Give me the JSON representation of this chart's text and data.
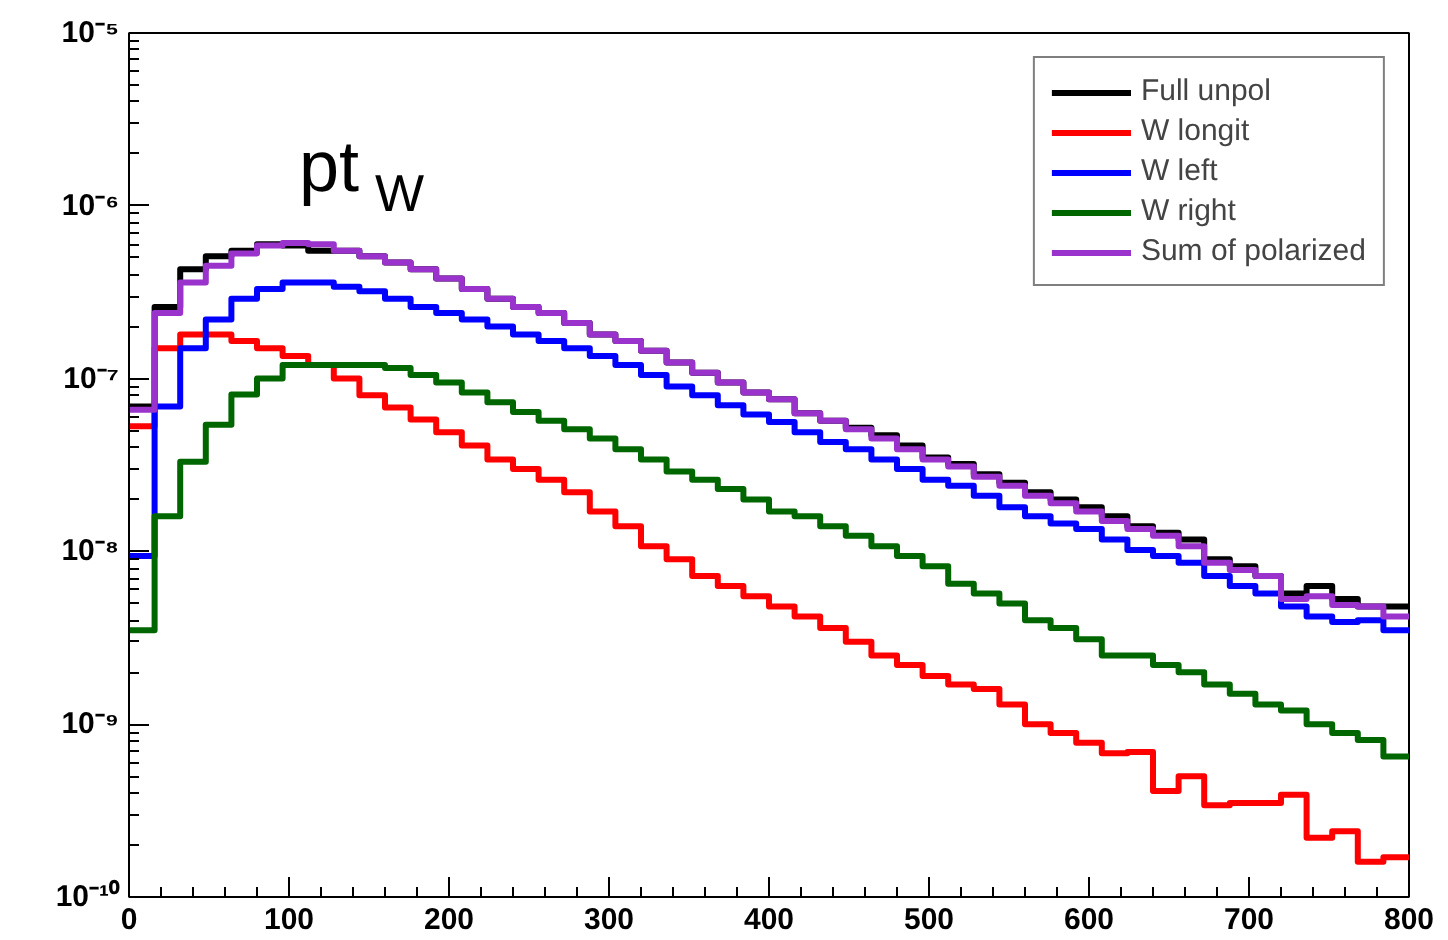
{
  "chart_data": {
    "type": "histogram",
    "bins": [
      0,
      16,
      32,
      48,
      64,
      80,
      96,
      112,
      128,
      144,
      160,
      176,
      192,
      208,
      224,
      240,
      256,
      272,
      288,
      304,
      320,
      336,
      352,
      368,
      384,
      400,
      416,
      432,
      448,
      464,
      480,
      496,
      512,
      528,
      544,
      560,
      576,
      592,
      608,
      624,
      640,
      656,
      672,
      688,
      704,
      720,
      736,
      752,
      768,
      784,
      800
    ],
    "series": [
      {
        "name": "Full unpol",
        "color": "#000000",
        "values": [
          6.9e-08,
          2.6e-07,
          4.3e-07,
          5.1e-07,
          5.5e-07,
          6e-07,
          5.9e-07,
          5.5e-07,
          5.5e-07,
          5.1e-07,
          4.7e-07,
          4.3e-07,
          3.8e-07,
          3.3e-07,
          2.9e-07,
          2.6e-07,
          2.4e-07,
          2.1e-07,
          1.8e-07,
          1.65e-07,
          1.45e-07,
          1.24e-07,
          1.08e-07,
          9.5e-08,
          8.3e-08,
          7.6e-08,
          6.3e-08,
          5.7e-08,
          5.2e-08,
          4.7e-08,
          4.1e-08,
          3.5e-08,
          3.2e-08,
          2.8e-08,
          2.5e-08,
          2.2e-08,
          2e-08,
          1.8e-08,
          1.6e-08,
          1.4e-08,
          1.28e-08,
          1.17e-08,
          9e-09,
          8.2e-09,
          7.2e-09,
          5.7e-09,
          6.3e-09,
          5.3e-09,
          4.8e-09,
          4.8e-09
        ]
      },
      {
        "name": "W longit",
        "color": "#ff0000",
        "values": [
          5.3e-08,
          1.5e-07,
          1.8e-07,
          1.8e-07,
          1.65e-07,
          1.5e-07,
          1.35e-07,
          1.2e-07,
          1e-07,
          8e-08,
          6.8e-08,
          5.8e-08,
          4.9e-08,
          4.1e-08,
          3.4e-08,
          3e-08,
          2.6e-08,
          2.2e-08,
          1.7e-08,
          1.4e-08,
          1.07e-08,
          9e-09,
          7.2e-09,
          6.3e-09,
          5.5e-09,
          4.8e-09,
          4.2e-09,
          3.6e-09,
          3e-09,
          2.5e-09,
          2.2e-09,
          1.9e-09,
          1.7e-09,
          1.6e-09,
          1.3e-09,
          1e-09,
          8.9e-10,
          7.8e-10,
          6.8e-10,
          6.9e-10,
          4.1e-10,
          5e-10,
          3.4e-10,
          3.5e-10,
          3.5e-10,
          3.9e-10,
          2.2e-10,
          2.4e-10,
          1.6e-10,
          1.7e-10
        ]
      },
      {
        "name": "W left",
        "color": "#0000ff",
        "values": [
          9.4e-09,
          6.9e-08,
          1.5e-07,
          2.2e-07,
          2.9e-07,
          3.3e-07,
          3.6e-07,
          3.6e-07,
          3.4e-07,
          3.2e-07,
          2.9e-07,
          2.6e-07,
          2.4e-07,
          2.2e-07,
          2e-07,
          1.8e-07,
          1.65e-07,
          1.5e-07,
          1.35e-07,
          1.2e-07,
          1.05e-07,
          9e-08,
          8e-08,
          7e-08,
          6.2e-08,
          5.6e-08,
          4.9e-08,
          4.3e-08,
          3.9e-08,
          3.4e-08,
          3e-08,
          2.6e-08,
          2.4e-08,
          2.1e-08,
          1.8e-08,
          1.6e-08,
          1.45e-08,
          1.35e-08,
          1.17e-08,
          1.02e-08,
          9.4e-09,
          8.6e-09,
          7.2e-09,
          6.3e-09,
          5.7e-09,
          4.8e-09,
          4.2e-09,
          3.9e-09,
          4e-09,
          3.5e-09
        ]
      },
      {
        "name": "W right",
        "color": "#006600",
        "values": [
          3.5e-09,
          1.6e-08,
          3.3e-08,
          5.4e-08,
          8.1e-08,
          1e-07,
          1.2e-07,
          1.2e-07,
          1.2e-07,
          1.2e-07,
          1.15e-07,
          1.05e-07,
          9.5e-08,
          8.3e-08,
          7.3e-08,
          6.4e-08,
          5.7e-08,
          5.1e-08,
          4.5e-08,
          3.9e-08,
          3.4e-08,
          2.9e-08,
          2.6e-08,
          2.3e-08,
          2e-08,
          1.7e-08,
          1.6e-08,
          1.4e-08,
          1.23e-08,
          1.07e-08,
          9.4e-09,
          8.2e-09,
          6.5e-09,
          5.7e-09,
          5e-09,
          4e-09,
          3.6e-09,
          3.1e-09,
          2.5e-09,
          2.5e-09,
          2.2e-09,
          2e-09,
          1.7e-09,
          1.5e-09,
          1.3e-09,
          1.2e-09,
          1e-09,
          8.9e-10,
          8.1e-10,
          6.5e-10
        ]
      },
      {
        "name": "Sum of polarized",
        "color": "#9933cc",
        "values": [
          6.6e-08,
          2.4e-07,
          3.6e-07,
          4.5e-07,
          5.3e-07,
          5.9e-07,
          6.1e-07,
          6e-07,
          5.5e-07,
          5.1e-07,
          4.7e-07,
          4.3e-07,
          3.8e-07,
          3.3e-07,
          2.9e-07,
          2.6e-07,
          2.4e-07,
          2.1e-07,
          1.8e-07,
          1.65e-07,
          1.45e-07,
          1.24e-07,
          1.08e-07,
          9.5e-08,
          8.3e-08,
          7.6e-08,
          6.3e-08,
          5.7e-08,
          5.1e-08,
          4.5e-08,
          3.9e-08,
          3.4e-08,
          3.1e-08,
          2.7e-08,
          2.4e-08,
          2.1e-08,
          1.9e-08,
          1.7e-08,
          1.5e-08,
          1.35e-08,
          1.23e-08,
          1.07e-08,
          8.6e-09,
          7.8e-09,
          7.2e-09,
          5.3e-09,
          5.5e-09,
          4.9e-09,
          4.8e-09,
          4.2e-09
        ]
      }
    ],
    "annotations": [
      "pt$_{W}$"
    ],
    "log": "y",
    "xlim": [
      0,
      800
    ],
    "xticks": [
      0,
      100,
      200,
      300,
      400,
      500,
      600,
      700,
      800
    ],
    "ylim": [
      1e-10,
      1e-05
    ],
    "yticks": [
      {
        "value": 1e-10,
        "label": "10⁻¹⁰"
      },
      {
        "value": 1e-09,
        "label": "10⁻⁹"
      },
      {
        "value": 1e-08,
        "label": "10⁻⁸"
      },
      {
        "value": 1e-07,
        "label": "10⁻⁷"
      },
      {
        "value": 1e-06,
        "label": "10⁻⁶"
      },
      {
        "value": 1e-05,
        "label": "10⁻⁵"
      }
    ],
    "legend": "top right",
    "grid": false,
    "line_style": "solid"
  }
}
